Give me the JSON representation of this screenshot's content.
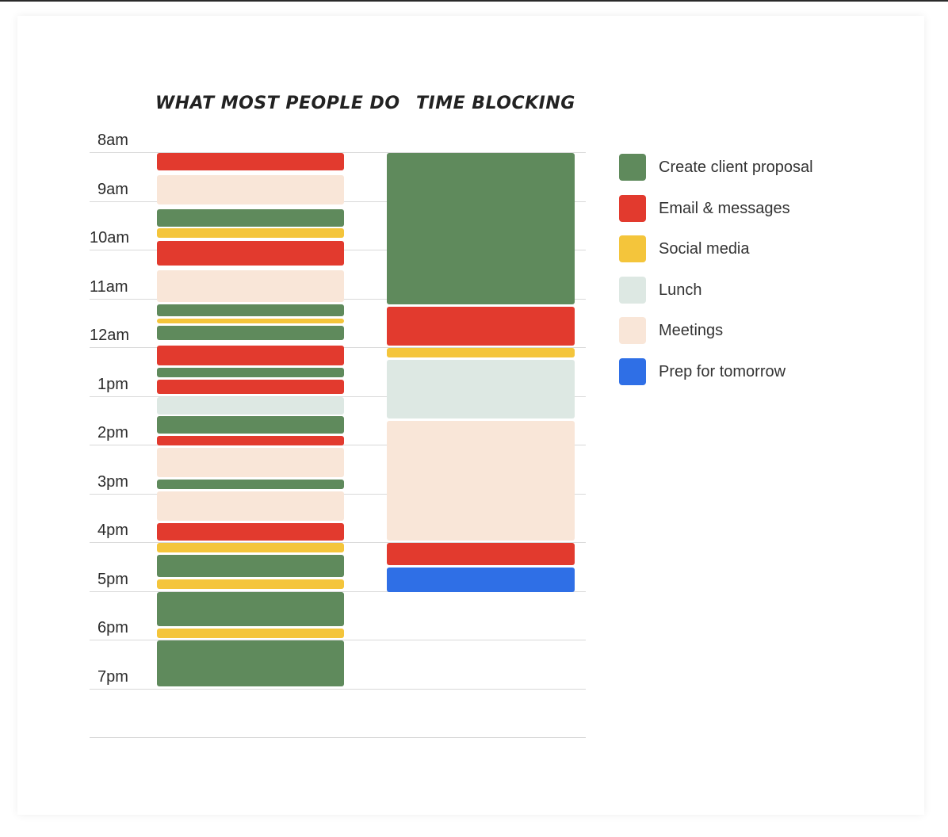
{
  "columns": {
    "left_title": "WHAT MOST PEOPLE DO",
    "right_title": "TIME BLOCKING"
  },
  "hours": [
    "8am",
    "9am",
    "10am",
    "11am",
    "12am",
    "1pm",
    "2pm",
    "3pm",
    "4pm",
    "5pm",
    "6pm",
    "7pm"
  ],
  "legend": [
    {
      "label": "Create client proposal",
      "color": "#5f8a5c"
    },
    {
      "label": "Email & messages",
      "color": "#e23a2e"
    },
    {
      "label": "Social media",
      "color": "#f4c53b"
    },
    {
      "label": "Lunch",
      "color": "#dde8e3"
    },
    {
      "label": "Meetings",
      "color": "#f9e6d8"
    },
    {
      "label": "Prep for tomorrow",
      "color": "#2f6fe6"
    }
  ],
  "chart_data": {
    "type": "table",
    "time_unit": "hours",
    "schedules": [
      {
        "column": "WHAT MOST PEOPLE DO",
        "blocks": [
          {
            "activity": "Email & messages",
            "start": 8.0,
            "end": 8.35
          },
          {
            "activity": "Meetings",
            "start": 8.45,
            "end": 9.05
          },
          {
            "activity": "Create client proposal",
            "start": 9.15,
            "end": 9.5
          },
          {
            "activity": "Social media",
            "start": 9.55,
            "end": 9.75
          },
          {
            "activity": "Email & messages",
            "start": 9.8,
            "end": 10.3
          },
          {
            "activity": "Meetings",
            "start": 10.4,
            "end": 11.05
          },
          {
            "activity": "Create client proposal",
            "start": 11.1,
            "end": 11.35
          },
          {
            "activity": "Social media",
            "start": 11.4,
            "end": 11.5
          },
          {
            "activity": "Create client proposal",
            "start": 11.55,
            "end": 11.85
          },
          {
            "activity": "Email & messages",
            "start": 11.95,
            "end": 12.35
          },
          {
            "activity": "Create client proposal",
            "start": 12.4,
            "end": 12.6
          },
          {
            "activity": "Email & messages",
            "start": 12.65,
            "end": 12.95
          },
          {
            "activity": "Lunch",
            "start": 13.0,
            "end": 13.35
          },
          {
            "activity": "Create client proposal",
            "start": 13.4,
            "end": 13.75
          },
          {
            "activity": "Email & messages",
            "start": 13.8,
            "end": 14.0
          },
          {
            "activity": "Meetings",
            "start": 14.05,
            "end": 14.65
          },
          {
            "activity": "Create client proposal",
            "start": 14.7,
            "end": 14.9
          },
          {
            "activity": "Meetings",
            "start": 14.95,
            "end": 15.55
          },
          {
            "activity": "Email & messages",
            "start": 15.6,
            "end": 15.95
          },
          {
            "activity": "Social media",
            "start": 16.0,
            "end": 16.2
          },
          {
            "activity": "Create client proposal",
            "start": 16.25,
            "end": 16.7
          },
          {
            "activity": "Social media",
            "start": 16.75,
            "end": 16.95
          },
          {
            "activity": "Create client proposal",
            "start": 17.0,
            "end": 17.7
          },
          {
            "activity": "Social media",
            "start": 17.75,
            "end": 17.95
          },
          {
            "activity": "Create client proposal",
            "start": 18.0,
            "end": 18.95
          }
        ]
      },
      {
        "column": "TIME BLOCKING",
        "blocks": [
          {
            "activity": "Create client proposal",
            "start": 8.0,
            "end": 11.1
          },
          {
            "activity": "Email & messages",
            "start": 11.15,
            "end": 11.95
          },
          {
            "activity": "Social media",
            "start": 12.0,
            "end": 12.2
          },
          {
            "activity": "Lunch",
            "start": 12.25,
            "end": 13.45
          },
          {
            "activity": "Meetings",
            "start": 13.5,
            "end": 15.95
          },
          {
            "activity": "Email & messages",
            "start": 16.0,
            "end": 16.45
          },
          {
            "activity": "Prep for tomorrow",
            "start": 16.5,
            "end": 17.0
          }
        ]
      }
    ]
  }
}
